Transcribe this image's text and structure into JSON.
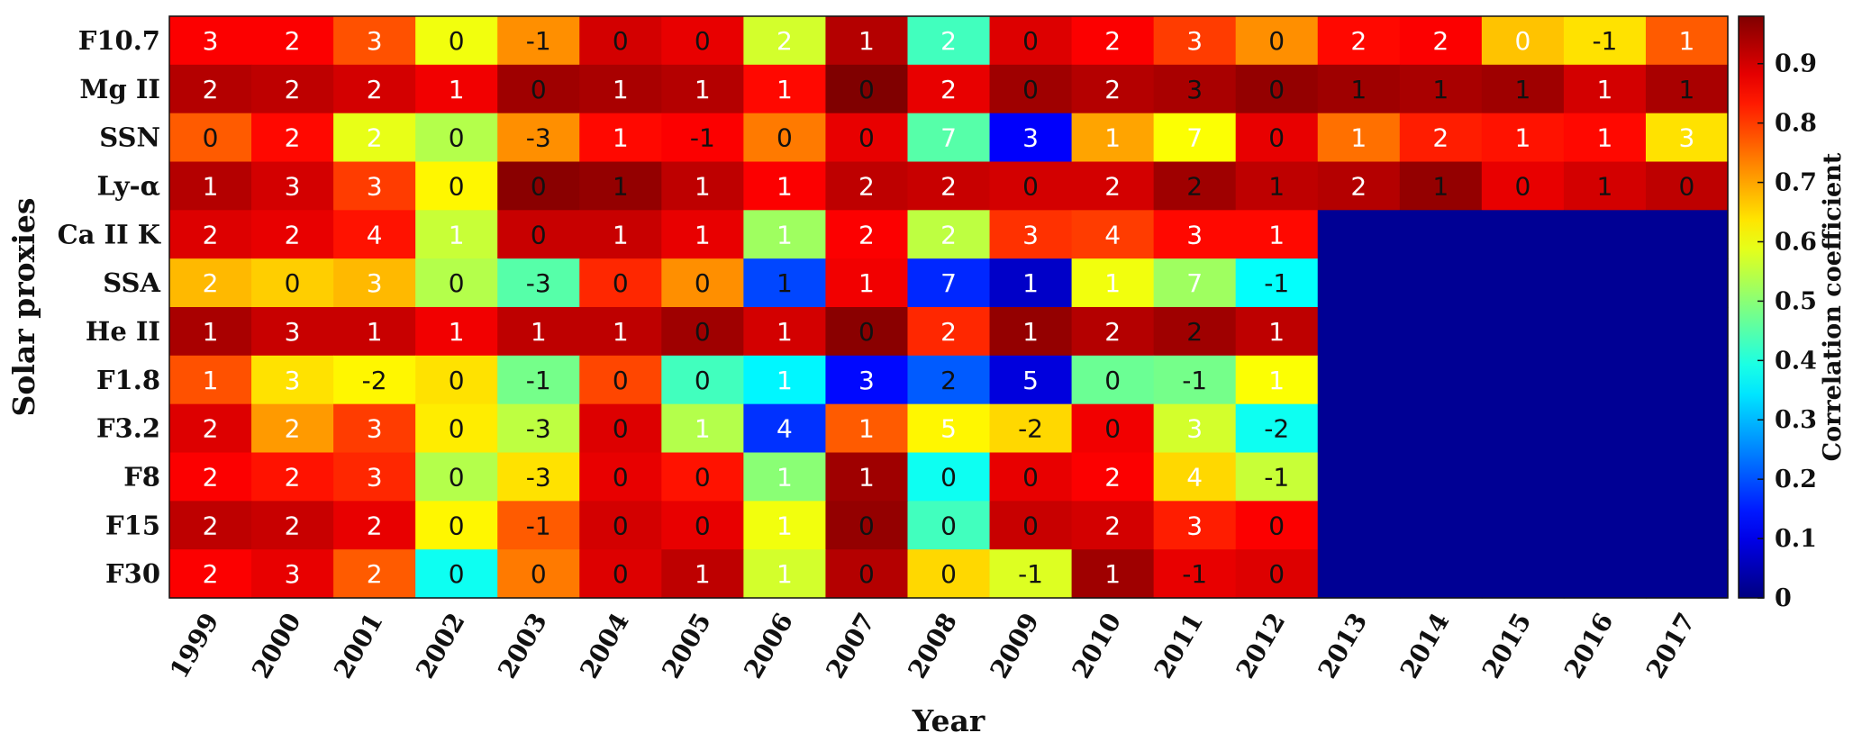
{
  "chart_data": {
    "type": "heatmap",
    "title": "",
    "xlabel": "Year",
    "ylabel": "Solar proxies",
    "colorbar_label": "Correlation coefficient",
    "colorbar_ticks": [
      "0",
      "0.1",
      "0.2",
      "0.3",
      "0.4",
      "0.5",
      "0.6",
      "0.7",
      "0.8",
      "0.9"
    ],
    "colorbar_range": [
      0,
      0.98
    ],
    "colormap": "jet",
    "x": [
      "1999",
      "2000",
      "2001",
      "2002",
      "2003",
      "2004",
      "2005",
      "2006",
      "2007",
      "2008",
      "2009",
      "2010",
      "2011",
      "2012",
      "2013",
      "2014",
      "2015",
      "2016",
      "2017"
    ],
    "y": [
      "F10.7",
      "Mg II",
      "SSN",
      "Ly-α",
      "Ca II K",
      "SSA",
      "He II",
      "F1.8",
      "F3.2",
      "F8",
      "F15",
      "F30"
    ],
    "correlation": [
      [
        0.86,
        0.86,
        0.78,
        0.6,
        0.72,
        0.9,
        0.88,
        0.57,
        0.93,
        0.43,
        0.89,
        0.86,
        0.8,
        0.72,
        0.85,
        0.86,
        0.67,
        0.64,
        0.77
      ],
      [
        0.93,
        0.92,
        0.9,
        0.87,
        0.95,
        0.94,
        0.93,
        0.85,
        0.98,
        0.88,
        0.95,
        0.93,
        0.94,
        0.96,
        0.95,
        0.94,
        0.95,
        0.9,
        0.94
      ],
      [
        0.77,
        0.85,
        0.59,
        0.54,
        0.72,
        0.85,
        0.86,
        0.74,
        0.88,
        0.45,
        0.12,
        0.7,
        0.61,
        0.88,
        0.75,
        0.83,
        0.84,
        0.85,
        0.64
      ],
      [
        0.93,
        0.9,
        0.8,
        0.62,
        0.97,
        0.96,
        0.92,
        0.86,
        0.92,
        0.91,
        0.9,
        0.9,
        0.95,
        0.92,
        0.93,
        0.96,
        0.88,
        0.9,
        0.92
      ],
      [
        0.89,
        0.88,
        0.84,
        0.56,
        0.91,
        0.91,
        0.88,
        0.52,
        0.86,
        0.55,
        0.81,
        0.8,
        0.85,
        0.85,
        0.02,
        0.02,
        0.02,
        0.02,
        0.02
      ],
      [
        0.68,
        0.66,
        0.68,
        0.54,
        0.45,
        0.82,
        0.72,
        0.19,
        0.87,
        0.16,
        0.07,
        0.6,
        0.52,
        0.37,
        0.02,
        0.02,
        0.02,
        0.02,
        0.02
      ],
      [
        0.94,
        0.91,
        0.91,
        0.87,
        0.92,
        0.92,
        0.95,
        0.9,
        0.97,
        0.82,
        0.96,
        0.93,
        0.95,
        0.92,
        0.02,
        0.02,
        0.02,
        0.02,
        0.02
      ],
      [
        0.78,
        0.64,
        0.62,
        0.64,
        0.48,
        0.79,
        0.43,
        0.36,
        0.13,
        0.21,
        0.09,
        0.47,
        0.48,
        0.61,
        0.02,
        0.02,
        0.02,
        0.02,
        0.02
      ],
      [
        0.89,
        0.71,
        0.8,
        0.63,
        0.55,
        0.89,
        0.54,
        0.17,
        0.77,
        0.62,
        0.65,
        0.87,
        0.57,
        0.38,
        0.02,
        0.02,
        0.02,
        0.02,
        0.02
      ],
      [
        0.86,
        0.84,
        0.82,
        0.54,
        0.64,
        0.88,
        0.84,
        0.5,
        0.95,
        0.38,
        0.88,
        0.86,
        0.65,
        0.56,
        0.02,
        0.02,
        0.02,
        0.02,
        0.02
      ],
      [
        0.92,
        0.91,
        0.88,
        0.62,
        0.77,
        0.9,
        0.88,
        0.6,
        0.96,
        0.43,
        0.91,
        0.9,
        0.83,
        0.86,
        0.02,
        0.02,
        0.02,
        0.02,
        0.02
      ],
      [
        0.86,
        0.88,
        0.77,
        0.38,
        0.74,
        0.89,
        0.92,
        0.57,
        0.93,
        0.65,
        0.58,
        0.95,
        0.88,
        0.89,
        0.02,
        0.02,
        0.02,
        0.02,
        0.02
      ]
    ],
    "cell_labels": [
      [
        "3",
        "2",
        "3",
        "0",
        "-1",
        "0",
        "0",
        "2",
        "1",
        "2",
        "0",
        "2",
        "3",
        "0",
        "2",
        "2",
        "0",
        "-1",
        "1"
      ],
      [
        "2",
        "2",
        "2",
        "1",
        "0",
        "1",
        "1",
        "1",
        "0",
        "2",
        "0",
        "2",
        "3",
        "0",
        "1",
        "1",
        "1",
        "1",
        "1"
      ],
      [
        "0",
        "2",
        "2",
        "0",
        "-3",
        "1",
        "-1",
        "0",
        "0",
        "7",
        "3",
        "1",
        "7",
        "0",
        "1",
        "2",
        "1",
        "1",
        "3"
      ],
      [
        "1",
        "3",
        "3",
        "0",
        "0",
        "1",
        "1",
        "1",
        "2",
        "2",
        "0",
        "2",
        "2",
        "1",
        "2",
        "1",
        "0",
        "1",
        "0"
      ],
      [
        "2",
        "2",
        "4",
        "1",
        "0",
        "1",
        "1",
        "1",
        "2",
        "2",
        "3",
        "4",
        "3",
        "1",
        "",
        "",
        "",
        "",
        ""
      ],
      [
        "2",
        "0",
        "3",
        "0",
        "-3",
        "0",
        "0",
        "1",
        "1",
        "7",
        "1",
        "1",
        "7",
        "-1",
        "",
        "",
        "",
        "",
        ""
      ],
      [
        "1",
        "3",
        "1",
        "1",
        "1",
        "1",
        "0",
        "1",
        "0",
        "2",
        "1",
        "2",
        "2",
        "1",
        "",
        "",
        "",
        "",
        ""
      ],
      [
        "1",
        "3",
        "-2",
        "0",
        "-1",
        "0",
        "0",
        "1",
        "3",
        "2",
        "5",
        "0",
        "-1",
        "1",
        "",
        "",
        "",
        "",
        ""
      ],
      [
        "2",
        "2",
        "3",
        "0",
        "-3",
        "0",
        "1",
        "4",
        "1",
        "5",
        "-2",
        "0",
        "3",
        "-2",
        "",
        "",
        "",
        "",
        ""
      ],
      [
        "2",
        "2",
        "3",
        "0",
        "-3",
        "0",
        "0",
        "1",
        "1",
        "0",
        "0",
        "2",
        "4",
        "-1",
        "",
        "",
        "",
        "",
        ""
      ],
      [
        "2",
        "2",
        "2",
        "0",
        "-1",
        "0",
        "0",
        "1",
        "0",
        "0",
        "0",
        "2",
        "3",
        "0",
        "",
        "",
        "",
        "",
        ""
      ],
      [
        "2",
        "3",
        "2",
        "0",
        "0",
        "0",
        "1",
        "1",
        "0",
        "0",
        "-1",
        "1",
        "-1",
        "0",
        "",
        "",
        "",
        "",
        ""
      ]
    ],
    "cell_label_colors": [
      [
        "w",
        "w",
        "w",
        "k",
        "k",
        "k",
        "k",
        "w",
        "w",
        "w",
        "k",
        "w",
        "w",
        "k",
        "w",
        "w",
        "w",
        "k",
        "w"
      ],
      [
        "w",
        "w",
        "w",
        "w",
        "k",
        "w",
        "w",
        "w",
        "k",
        "w",
        "k",
        "w",
        "k",
        "k",
        "k",
        "k",
        "k",
        "w",
        "k"
      ],
      [
        "k",
        "w",
        "w",
        "k",
        "k",
        "w",
        "k",
        "k",
        "k",
        "w",
        "w",
        "w",
        "w",
        "k",
        "w",
        "w",
        "w",
        "w",
        "w"
      ],
      [
        "w",
        "w",
        "w",
        "k",
        "k",
        "k",
        "w",
        "w",
        "w",
        "w",
        "k",
        "w",
        "k",
        "k",
        "w",
        "k",
        "k",
        "k",
        "k"
      ],
      [
        "w",
        "w",
        "w",
        "w",
        "k",
        "w",
        "w",
        "w",
        "w",
        "w",
        "w",
        "w",
        "w",
        "w",
        "",
        "",
        "",
        "",
        ""
      ],
      [
        "w",
        "k",
        "w",
        "k",
        "k",
        "k",
        "k",
        "k",
        "w",
        "w",
        "w",
        "w",
        "w",
        "k",
        "",
        "",
        "",
        "",
        ""
      ],
      [
        "w",
        "w",
        "w",
        "w",
        "w",
        "w",
        "k",
        "w",
        "k",
        "w",
        "w",
        "w",
        "k",
        "w",
        "",
        "",
        "",
        "",
        ""
      ],
      [
        "w",
        "w",
        "k",
        "k",
        "k",
        "k",
        "k",
        "w",
        "w",
        "k",
        "w",
        "k",
        "k",
        "w",
        "",
        "",
        "",
        "",
        ""
      ],
      [
        "w",
        "w",
        "w",
        "k",
        "k",
        "k",
        "w",
        "w",
        "w",
        "w",
        "k",
        "k",
        "w",
        "k",
        "",
        "",
        "",
        "",
        ""
      ],
      [
        "w",
        "w",
        "w",
        "k",
        "k",
        "k",
        "k",
        "w",
        "w",
        "k",
        "k",
        "w",
        "w",
        "k",
        "",
        "",
        "",
        "",
        ""
      ],
      [
        "w",
        "w",
        "w",
        "k",
        "k",
        "k",
        "k",
        "w",
        "k",
        "k",
        "k",
        "w",
        "w",
        "k",
        "",
        "",
        "",
        "",
        ""
      ],
      [
        "w",
        "w",
        "w",
        "k",
        "k",
        "k",
        "w",
        "w",
        "k",
        "k",
        "k",
        "w",
        "k",
        "k",
        "",
        "",
        "",
        "",
        ""
      ]
    ]
  }
}
